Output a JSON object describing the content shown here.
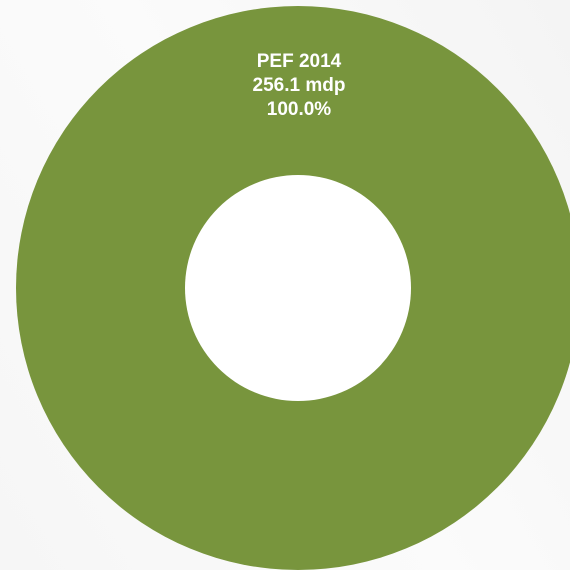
{
  "chart_data": {
    "type": "pie",
    "variant": "donut",
    "categories": [
      "PEF 2014"
    ],
    "values": [
      256.1
    ],
    "colors": [
      "#78953d"
    ],
    "data_labels": [
      {
        "name": "PEF 2014",
        "value_text": "256.1 mdp",
        "percent_text": "100.0%"
      }
    ],
    "label_color": "#ffffff",
    "legend": "none"
  }
}
